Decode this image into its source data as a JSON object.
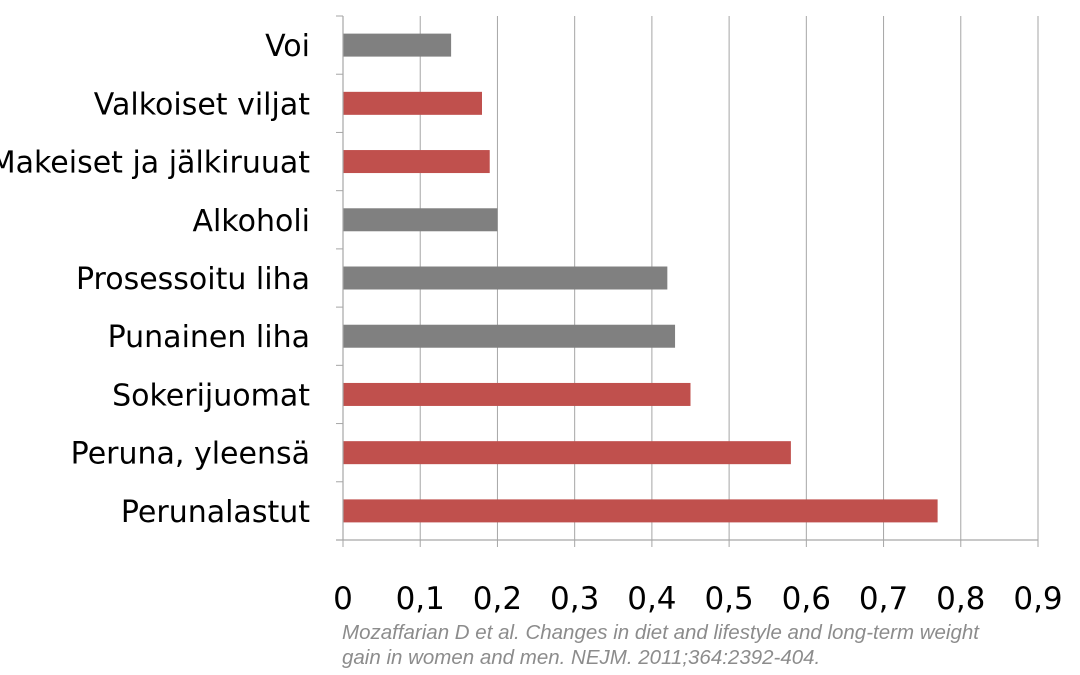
{
  "chart_data": {
    "type": "bar",
    "orientation": "horizontal",
    "categories": [
      "Voi",
      "Valkoiset viljat",
      "Makeiset ja jälkiruuat",
      "Alkoholi",
      "Prosessoitu liha",
      "Punainen liha",
      "Sokerijuomat",
      "Peruna, yleensä",
      "Perunalastut"
    ],
    "values": [
      0.14,
      0.18,
      0.19,
      0.2,
      0.42,
      0.43,
      0.45,
      0.58,
      0.77
    ],
    "bar_colors": [
      "#808080",
      "#c0504d",
      "#c0504d",
      "#808080",
      "#808080",
      "#808080",
      "#c0504d",
      "#c0504d",
      "#c0504d"
    ],
    "xlim": [
      0,
      0.9
    ],
    "xticks": [
      0,
      0.1,
      0.2,
      0.3,
      0.4,
      0.5,
      0.6,
      0.7,
      0.8,
      0.9
    ],
    "xtick_labels": [
      "0",
      "0,1",
      "0,2",
      "0,3",
      "0,4",
      "0,5",
      "0,6",
      "0,7",
      "0,8",
      "0,9"
    ],
    "grid": "vertical",
    "title": "",
    "xlabel": "",
    "ylabel": "",
    "legend": "none"
  },
  "citation": {
    "line1": "Mozaffarian D et al. Changes in diet and lifestyle and long-term weight",
    "line2": "gain in women and men. NEJM. 2011;364:2392-404."
  },
  "colors": {
    "gray_bar": "#808080",
    "red_bar": "#c0504d",
    "gridline": "#a6a6a6",
    "citation_text": "#8c8c8c"
  }
}
